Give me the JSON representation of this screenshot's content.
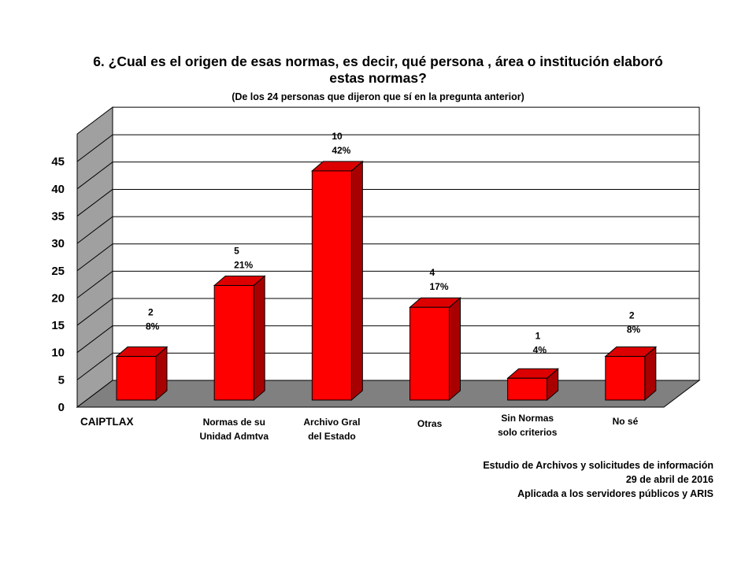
{
  "title": "6. ¿Cual es el origen de esas normas, es decir, qué persona , área o institución elaboró estas normas?",
  "subtitle": "(De los 24 personas que dijeron que sí en la pregunta anterior)",
  "footer": {
    "line1": "Estudio de Archivos y solicitudes de información",
    "line2": "29 de abril de 2016",
    "line3": "Aplicada a los servidores públicos y ARIS"
  },
  "colors": {
    "bar_front": "#ff0000",
    "bar_side": "#a80000",
    "bar_top": "#dd0000",
    "wall": "#ffffff",
    "side_wall": "#a0a0a0",
    "floor": "#808080"
  },
  "chart_data": {
    "type": "bar",
    "title": "6. ¿Cual es el origen de esas normas, es decir, qué persona , área o institución elaboró estas normas?",
    "subtitle": "(De los 24 personas que dijeron que sí en la pregunta anterior)",
    "categories": [
      "CAIPTLAX",
      "Normas de su Unidad Admtva",
      "Archivo Gral del Estado",
      "Otras",
      "Sin Normas solo criterios",
      "No sé"
    ],
    "category_lines": [
      [
        "CAIPTLAX"
      ],
      [
        "Normas de su",
        "Unidad Admtva"
      ],
      [
        "Archivo Gral",
        "del Estado"
      ],
      [
        "Otras"
      ],
      [
        "Sin Normas",
        "solo criterios"
      ],
      [
        "No sé"
      ]
    ],
    "values": [
      8,
      21,
      42,
      17,
      4,
      8
    ],
    "counts": [
      "2",
      "5",
      "10",
      "4",
      "1",
      "2"
    ],
    "percent_labels": [
      "8%",
      "21%",
      "42%",
      "17%",
      "4%",
      "8%"
    ],
    "yticks": [
      "0",
      "5",
      "10",
      "15",
      "20",
      "25",
      "30",
      "35",
      "40",
      "45"
    ],
    "ylim": [
      0,
      45
    ],
    "grid": true,
    "legend": "none",
    "style": "3d"
  }
}
